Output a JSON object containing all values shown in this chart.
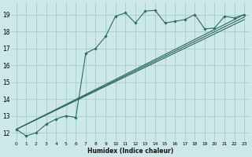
{
  "xlabel": "Humidex (Indice chaleur)",
  "bg_color": "#cce8e8",
  "grid_color": "#aad0d0",
  "line_color": "#2e6b62",
  "xlim": [
    -0.5,
    23.5
  ],
  "ylim": [
    11.5,
    19.7
  ],
  "yticks": [
    12,
    13,
    14,
    15,
    16,
    17,
    18,
    19
  ],
  "xticks": [
    0,
    1,
    2,
    3,
    4,
    5,
    6,
    7,
    8,
    9,
    10,
    11,
    12,
    13,
    14,
    15,
    16,
    17,
    18,
    19,
    20,
    21,
    22,
    23
  ],
  "main_x": [
    0,
    1,
    2,
    3,
    4,
    5,
    6,
    7,
    8,
    9,
    10,
    11,
    12,
    13,
    14,
    15,
    16,
    17,
    18,
    19,
    20,
    21,
    22,
    23
  ],
  "main_y": [
    12.2,
    11.8,
    12.0,
    12.5,
    12.8,
    13.0,
    12.9,
    16.7,
    17.0,
    17.7,
    18.9,
    19.1,
    18.5,
    19.2,
    19.25,
    18.5,
    18.6,
    18.7,
    19.0,
    18.15,
    18.2,
    18.9,
    18.8,
    19.0
  ],
  "line2_x": [
    0,
    23
  ],
  "line2_y": [
    12.2,
    19.0
  ],
  "line3_x": [
    0,
    23
  ],
  "line3_y": [
    12.2,
    18.85
  ],
  "line4_x": [
    0,
    23
  ],
  "line4_y": [
    12.2,
    18.7
  ]
}
